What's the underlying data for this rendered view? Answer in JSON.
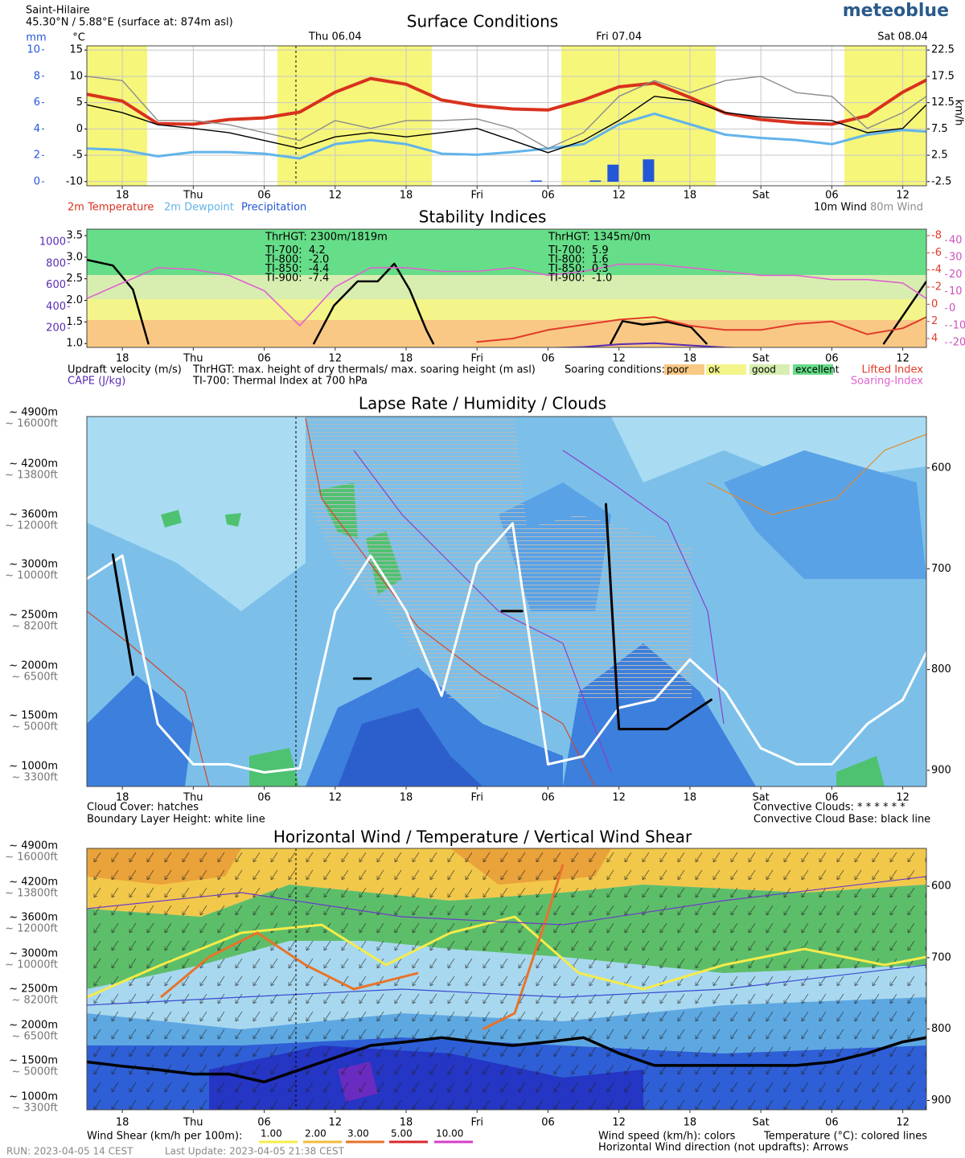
{
  "header": {
    "location": "Saint-Hilaire",
    "coordinates": "45.30°N / 5.88°E (surface at: 874m asl)",
    "logo": "meteoblue"
  },
  "time_axis": {
    "xlim": [
      15,
      86
    ],
    "xticks": [
      18,
      {
        "value": 24,
        "label": "Thu"
      },
      {
        "value": 30,
        "label": "06"
      },
      {
        "value": 36,
        "label": "12"
      },
      {
        "value": 42,
        "label": "18"
      },
      {
        "value": 48,
        "label": "Fri"
      },
      {
        "value": 54,
        "label": "06"
      },
      {
        "value": 60,
        "label": "12"
      },
      {
        "value": 66,
        "label": "18"
      },
      {
        "value": 72,
        "label": "Sat"
      },
      {
        "value": 78,
        "label": "06"
      },
      {
        "value": 84,
        "label": "12"
      }
    ],
    "dates": [
      {
        "value": 36,
        "label": "Thu 06.04"
      },
      {
        "value": 60,
        "label": "Fri 07.04"
      },
      {
        "value": 84,
        "label": "Sat 08.04"
      }
    ]
  },
  "height_labels": [
    {
      "m": "~ 4900m",
      "ft": "~ 16000ft"
    },
    {
      "m": "~ 4200m",
      "ft": "~ 13800ft"
    },
    {
      "m": "~ 3600m",
      "ft": "~ 12000ft"
    },
    {
      "m": "~ 3000m",
      "ft": "~ 10000ft"
    },
    {
      "m": "~ 2500m",
      "ft": "~ 8200ft"
    },
    {
      "m": "~ 2000m",
      "ft": "~ 6500ft"
    },
    {
      "m": "~ 1500m",
      "ft": "~ 5000ft"
    },
    {
      "m": "~ 1000m",
      "ft": "~ 3300ft"
    }
  ],
  "chart_data": [
    {
      "type": "line",
      "title": "Surface Conditions",
      "grid": true,
      "x": [
        15,
        18,
        21,
        24,
        27,
        30,
        33,
        36,
        39,
        42,
        45,
        48,
        51,
        54,
        57,
        60,
        63,
        66,
        69,
        72,
        75,
        78,
        81,
        84,
        86
      ],
      "ylim": [
        -10.8,
        15.8
      ],
      "yticks": [
        -10,
        -5,
        0,
        5,
        10,
        15
      ],
      "y_label": "°C",
      "y2lim": [
        -3.3,
        23.3
      ],
      "y2ticks": [
        -2.5,
        2.5,
        7.5,
        12.5,
        17.5,
        22.5
      ],
      "y2_label": "km/h",
      "y3lim": [
        -0.3,
        10.3
      ],
      "y3ticks": [
        0,
        2,
        4,
        6,
        8,
        10
      ],
      "y3_label": "mm",
      "series": [
        {
          "name": "2m Temperature",
          "color": "#d8321e",
          "values": [
            6.6,
            5.3,
            1.0,
            0.9,
            1.8,
            2.1,
            3.2,
            7.0,
            9.6,
            8.5,
            5.5,
            4.4,
            3.8,
            3.6,
            5.5,
            8.0,
            8.7,
            6.0,
            3.0,
            1.8,
            1.2,
            0.9,
            2.5,
            7.0,
            9.3
          ]
        },
        {
          "name": "2m Dewpoint",
          "color": "#62b4ea",
          "values": [
            -3.7,
            -4.0,
            -5.2,
            -4.4,
            -4.4,
            -4.7,
            -5.6,
            -2.9,
            -2.1,
            -2.9,
            -4.7,
            -4.9,
            -4.4,
            -3.7,
            -2.9,
            0.9,
            2.9,
            0.9,
            -1.1,
            -1.7,
            -2.1,
            -2.9,
            -1.1,
            -0.2,
            -0.5
          ]
        },
        {
          "name": "Precipitation",
          "color": "#2456d6",
          "type": "bar",
          "axis": "y3",
          "x": [
            53,
            58,
            59.5,
            62.5
          ],
          "values": [
            0.1,
            0.1,
            1.3,
            1.7
          ]
        },
        {
          "name": "10m Wind",
          "color": "#000000",
          "axis": "y2",
          "values": [
            12.1,
            10.6,
            8.3,
            7.6,
            6.8,
            5.3,
            3.8,
            6.0,
            6.8,
            6.0,
            6.8,
            7.6,
            5.3,
            3.0,
            5.3,
            9.1,
            13.7,
            12.9,
            10.6,
            9.8,
            9.4,
            9.1,
            6.8,
            7.6,
            12.1
          ]
        },
        {
          "name": "80m Wind",
          "color": "#8c8c8c",
          "axis": "y2",
          "values": [
            17.5,
            16.7,
            9.1,
            9.1,
            8.3,
            6.8,
            5.3,
            9.1,
            7.6,
            9.1,
            9.1,
            9.4,
            7.6,
            3.8,
            6.8,
            13.7,
            16.7,
            14.4,
            16.7,
            17.5,
            14.4,
            13.7,
            7.6,
            10.6,
            13.7
          ]
        }
      ]
    },
    {
      "type": "line",
      "title": "Stability Indices",
      "grid": false,
      "x": [
        15,
        18,
        21,
        24,
        27,
        30,
        33,
        36,
        39,
        42,
        45,
        48,
        51,
        54,
        57,
        60,
        63,
        66,
        69,
        72,
        75,
        78,
        81,
        84,
        86
      ],
      "ylim": [
        0.91,
        3.65
      ],
      "yticks": [
        {
          "value": 1,
          "label": "1.0"
        },
        1.5,
        {
          "value": 2,
          "label": "2.0"
        },
        2.5,
        {
          "value": 3,
          "label": "3.0"
        },
        3.5
      ],
      "y2lim": [
        5.03,
        -8.75
      ],
      "y2ticks": [
        -8,
        -6,
        -4,
        -2,
        0,
        2,
        4
      ],
      "y3lim": [
        21,
        1120
      ],
      "y3ticks": [
        200,
        400,
        600,
        800,
        1000
      ],
      "y4lim": [
        -22.8,
        46.6
      ],
      "y4ticks": [
        -20,
        -10,
        0,
        10,
        20,
        30,
        40
      ],
      "series": [
        {
          "name": "Updraft velocity (m/s)",
          "color": "#000000",
          "x": [
            15,
            17.2,
            18.9,
            20.2,
            27,
            34.2,
            35.9,
            37.9,
            39.6,
            41.0,
            42.3,
            43.7,
            44.3,
            52,
            59.3,
            60.3,
            62.0,
            64.1,
            66.1,
            67.4,
            75,
            82.4,
            86
          ],
          "values": [
            2.94,
            2.81,
            2.25,
            1.0,
            null,
            1.0,
            1.88,
            2.44,
            2.44,
            2.85,
            2.25,
            1.32,
            1.0,
            null,
            1.0,
            1.52,
            1.44,
            1.5,
            1.38,
            1.0,
            null,
            1.0,
            2.44
          ]
        },
        {
          "name": "CAPE (J/kg)",
          "color": "#5b2bb5",
          "axis": "y3",
          "values": [
            10,
            10,
            10,
            10,
            10,
            10,
            10,
            10,
            10,
            10,
            10,
            10,
            10,
            15,
            25,
            50,
            60,
            40,
            20,
            10,
            10,
            10,
            10,
            10,
            10
          ]
        },
        {
          "name": "Lifted Index",
          "color": "#e03a2a",
          "axis": "y2",
          "values": [
            null,
            null,
            null,
            null,
            null,
            null,
            null,
            null,
            null,
            null,
            null,
            4.4,
            4.0,
            3.0,
            2.4,
            1.8,
            1.5,
            2.5,
            3.0,
            3.0,
            2.3,
            2.0,
            3.5,
            2.8,
            1.5
          ]
        },
        {
          "name": "Soaring-Index",
          "color": "#e062d0",
          "axis": "y4",
          "values": [
            5.9,
            15,
            24,
            23,
            19.5,
            10.5,
            -10,
            12.7,
            24,
            24,
            21.8,
            21.8,
            24,
            19.5,
            21.8,
            26,
            26,
            24,
            21.8,
            19.5,
            19.5,
            17,
            17,
            15,
            5.9
          ]
        }
      ],
      "thermal_info": [
        [
          "ThrHGT: 2300m/1819m",
          "TI-700:  4.2",
          "TI-800:  -2.0",
          "TI-850:  -4.4",
          "TI-900:  -7.4"
        ],
        [
          "ThrHGT: 1345m/0m",
          "TI-700:  5.9",
          "TI-800:  1.6",
          "TI-850:  0.3",
          "TI-900:  -1.0"
        ]
      ],
      "notes": [
        "ThrHGT: max. height of dry thermals/ max. soaring height (m asl)",
        "TI-700: Thermal Index at 700 hPa"
      ],
      "soaring_legend": {
        "title": "Soaring conditions:",
        "items": [
          {
            "label": "poor",
            "color": "#f8c884"
          },
          {
            "label": "ok",
            "color": "#f3f58a"
          },
          {
            "label": "good",
            "color": "#d8eeb0"
          },
          {
            "label": "excellent",
            "color": "#66dd88"
          }
        ]
      }
    },
    {
      "type": "contour",
      "title": "Lapse Rate / Humidity / Clouds",
      "x": [
        15,
        18,
        21,
        24,
        27,
        30,
        33,
        36,
        39,
        42,
        45,
        48,
        51,
        54,
        57,
        60,
        63,
        66,
        69,
        72,
        75,
        78,
        81,
        84,
        86
      ],
      "ylim": [
        916,
        549
      ],
      "yticks": [
        600,
        700,
        800,
        900
      ],
      "series": [
        {
          "color": "#ffffff",
          "values": [
            710,
            687,
            854,
            894,
            894,
            902,
            898,
            742,
            687,
            742,
            826,
            695,
            655,
            894,
            886,
            838,
            830,
            790,
            822,
            878,
            894,
            894,
            854,
            830,
            783
          ]
        },
        {
          "color": "#000000",
          "x": [
            17.2,
            18.9,
            28,
            37.6,
            39,
            45,
            50.1,
            51.8,
            55,
            58.9,
            60,
            64.1,
            67.8
          ],
          "values": [
            686,
            805,
            null,
            809,
            809,
            null,
            742,
            742,
            null,
            636,
            859,
            859,
            830
          ]
        }
      ],
      "notes": [
        "Cloud Cover: hatches",
        "Boundary Layer Height: white line",
        "Convective Clouds: * * * * * *",
        "Convective Cloud Base: black line"
      ]
    },
    {
      "type": "contour",
      "title": "Horizontal Wind / Temperature / Vertical Wind Shear",
      "x": [
        15,
        18,
        21,
        24,
        27,
        30,
        33,
        36,
        39,
        42,
        45,
        48,
        51,
        54,
        57,
        60,
        63,
        66,
        69,
        72,
        75,
        78,
        81,
        84,
        86
      ],
      "ylim": [
        913,
        547
      ],
      "yticks": [
        600,
        700,
        800,
        900
      ],
      "series": [
        {
          "color": "#000000",
          "values": [
            846,
            852,
            857,
            863,
            863,
            874,
            857,
            840,
            823,
            818,
            812,
            818,
            823,
            818,
            812,
            834,
            851,
            851,
            851,
            851,
            851,
            846,
            834,
            818,
            812
          ]
        }
      ],
      "notes": [
        "Wind speed (km/h): colors",
        "Temperature (°C): colored lines",
        "Horizontal Wind direction (not updrafts): Arrows"
      ],
      "shear_legend": {
        "title": "Wind Shear (km/h per 100m):",
        "items": [
          {
            "label": "1.00",
            "color": "#f5ec4a"
          },
          {
            "label": "2.00",
            "color": "#f2bb3c"
          },
          {
            "label": "3.00",
            "color": "#e8732a"
          },
          {
            "label": "5.00",
            "color": "#d9282a"
          },
          {
            "label": "10.00",
            "color": "#d63fc8"
          }
        ]
      }
    }
  ],
  "footer": {
    "run": "RUN: 2023-04-05 14 CEST",
    "update": "Last Update: 2023-04-05 21:38 CEST"
  }
}
